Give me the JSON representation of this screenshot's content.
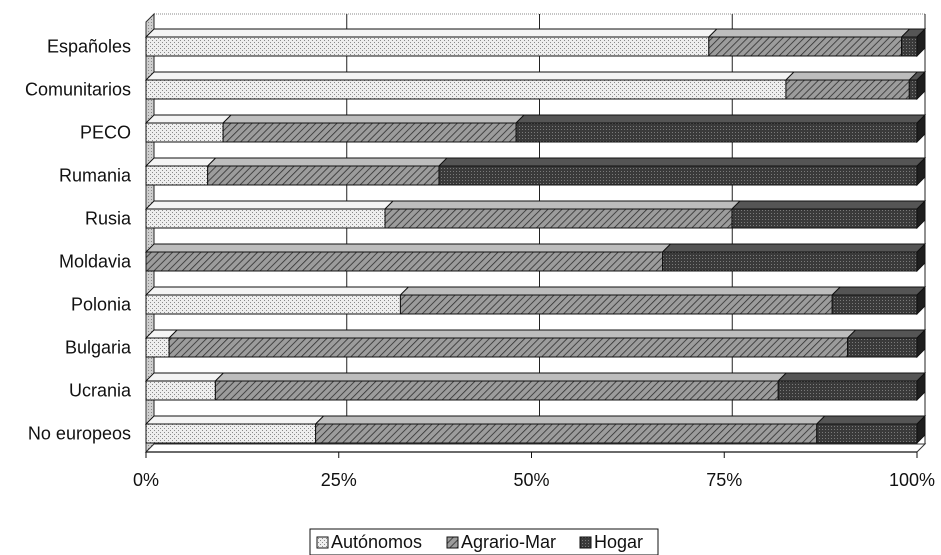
{
  "chart_data": {
    "type": "bar",
    "orientation": "horizontal",
    "stacked": "percent",
    "three_d": true,
    "categories": [
      "Españoles",
      "Comunitarios",
      "PECO",
      "Rumania",
      "Rusia",
      "Moldavia",
      "Polonia",
      "Bulgaria",
      "Ucrania",
      "No europeos"
    ],
    "series": [
      {
        "name": "Autónomos",
        "values": [
          73,
          83,
          10,
          8,
          31,
          0,
          33,
          3,
          9,
          22
        ]
      },
      {
        "name": "Agrario-Mar",
        "values": [
          25,
          16,
          38,
          30,
          45,
          67,
          56,
          88,
          73,
          65
        ]
      },
      {
        "name": "Hogar",
        "values": [
          2,
          1,
          52,
          62,
          24,
          33,
          11,
          9,
          18,
          13
        ]
      }
    ],
    "xticks": [
      "0%",
      "25%",
      "50%",
      "75%",
      "100%"
    ],
    "xlim": [
      0,
      100
    ],
    "grid": "vertical",
    "legend_position": "bottom",
    "title": "",
    "xlabel": "",
    "ylabel": ""
  }
}
